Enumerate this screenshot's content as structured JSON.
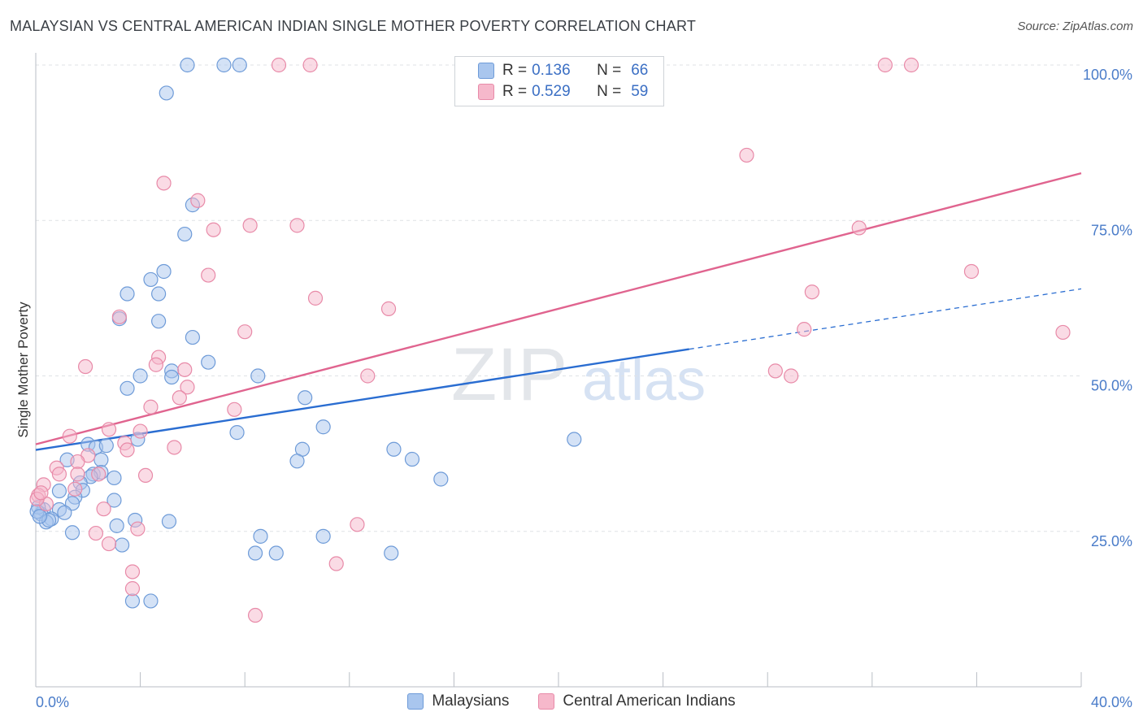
{
  "header": {
    "title": "MALAYSIAN VS CENTRAL AMERICAN INDIAN SINGLE MOTHER POVERTY CORRELATION CHART",
    "source": "Source: ZipAtlas.com"
  },
  "watermark": {
    "zip": "ZIP",
    "atlas": "atlas"
  },
  "legend_top": {
    "rows": [
      {
        "r_label": "R =",
        "r_value": "0.136",
        "n_label": "N =",
        "n_value": "66"
      },
      {
        "r_label": "R =",
        "r_value": "0.529",
        "n_label": "N =",
        "n_value": "59"
      }
    ]
  },
  "legend_bottom": {
    "items": [
      {
        "label": "Malaysians"
      },
      {
        "label": "Central American Indians"
      }
    ]
  },
  "colors": {
    "blue_fill": "#a9c6ee",
    "blue_stroke": "#6e9bd8",
    "blue_line": "#2a6dd1",
    "pink_fill": "#f6b8cb",
    "pink_stroke": "#e88aa8",
    "pink_line": "#e0648f",
    "tick_label": "#4a7cc9"
  },
  "chart_data": {
    "type": "scatter",
    "title": "MALAYSIAN VS CENTRAL AMERICAN INDIAN SINGLE MOTHER POVERTY CORRELATION CHART",
    "xlabel": "",
    "ylabel": "Single Mother Poverty",
    "xlim": [
      0,
      40
    ],
    "ylim": [
      0,
      105
    ],
    "x_tick_labels": [
      "0.0%",
      "40.0%"
    ],
    "y_ticks": [
      25,
      50,
      75,
      100
    ],
    "y_tick_labels": [
      "25.0%",
      "50.0%",
      "75.0%",
      "100.0%"
    ],
    "grid": true,
    "legend_position": "top-center",
    "series": [
      {
        "name": "Malaysians",
        "color": "blue",
        "trend": {
          "x": [
            0,
            25,
            40
          ],
          "y": [
            38.1,
            54.3,
            64.0
          ],
          "solid_to_x": 25
        },
        "points": [
          [
            5.8,
            100
          ],
          [
            7.2,
            100
          ],
          [
            7.8,
            100
          ],
          [
            5.0,
            95.5
          ],
          [
            6.0,
            77.5
          ],
          [
            5.7,
            72.8
          ],
          [
            4.9,
            66.8
          ],
          [
            4.4,
            65.5
          ],
          [
            3.5,
            63.2
          ],
          [
            4.7,
            63.2
          ],
          [
            3.2,
            59.2
          ],
          [
            4.7,
            58.8
          ],
          [
            6.0,
            56.2
          ],
          [
            6.6,
            52.2
          ],
          [
            5.2,
            50.8
          ],
          [
            5.2,
            49.8
          ],
          [
            4.0,
            50.0
          ],
          [
            8.5,
            50.0
          ],
          [
            3.5,
            48.0
          ],
          [
            10.3,
            46.5
          ],
          [
            11.0,
            41.8
          ],
          [
            7.7,
            40.9
          ],
          [
            3.9,
            39.8
          ],
          [
            20.6,
            39.8
          ],
          [
            2.0,
            39.0
          ],
          [
            2.3,
            38.5
          ],
          [
            2.7,
            38.8
          ],
          [
            10.2,
            38.2
          ],
          [
            13.7,
            38.2
          ],
          [
            1.2,
            36.5
          ],
          [
            2.5,
            36.5
          ],
          [
            10.0,
            36.3
          ],
          [
            14.4,
            36.6
          ],
          [
            2.2,
            34.2
          ],
          [
            2.5,
            34.5
          ],
          [
            2.1,
            33.8
          ],
          [
            3.0,
            33.6
          ],
          [
            1.7,
            32.8
          ],
          [
            15.5,
            33.4
          ],
          [
            1.8,
            31.6
          ],
          [
            0.9,
            31.5
          ],
          [
            1.5,
            30.5
          ],
          [
            3.0,
            30.0
          ],
          [
            1.4,
            29.5
          ],
          [
            0.3,
            28.5
          ],
          [
            0.9,
            28.5
          ],
          [
            1.1,
            28.0
          ],
          [
            0.2,
            27.8
          ],
          [
            0.6,
            27.0
          ],
          [
            0.4,
            26.5
          ],
          [
            0.5,
            26.8
          ],
          [
            3.8,
            26.8
          ],
          [
            5.1,
            26.6
          ],
          [
            3.1,
            25.9
          ],
          [
            1.4,
            24.8
          ],
          [
            8.6,
            24.2
          ],
          [
            11.0,
            24.2
          ],
          [
            3.3,
            22.8
          ],
          [
            8.4,
            21.5
          ],
          [
            9.2,
            21.5
          ],
          [
            13.6,
            21.5
          ],
          [
            3.7,
            13.8
          ],
          [
            4.4,
            13.8
          ],
          [
            0.1,
            28.9
          ],
          [
            0.05,
            28.2
          ],
          [
            0.15,
            27.4
          ]
        ]
      },
      {
        "name": "Central American Indians",
        "color": "pink",
        "trend": {
          "x": [
            0,
            40
          ],
          "y": [
            39.0,
            82.6
          ]
        },
        "points": [
          [
            9.3,
            100
          ],
          [
            10.5,
            100
          ],
          [
            32.5,
            100
          ],
          [
            33.5,
            100
          ],
          [
            27.2,
            85.5
          ],
          [
            4.9,
            81.0
          ],
          [
            6.2,
            78.2
          ],
          [
            8.2,
            74.2
          ],
          [
            10.0,
            74.2
          ],
          [
            6.8,
            73.5
          ],
          [
            31.5,
            73.8
          ],
          [
            35.8,
            66.8
          ],
          [
            6.6,
            66.2
          ],
          [
            10.7,
            62.5
          ],
          [
            29.7,
            63.5
          ],
          [
            13.5,
            60.8
          ],
          [
            3.2,
            59.5
          ],
          [
            8.0,
            57.1
          ],
          [
            29.4,
            57.5
          ],
          [
            39.3,
            57.0
          ],
          [
            4.7,
            53.0
          ],
          [
            4.6,
            51.8
          ],
          [
            1.9,
            51.5
          ],
          [
            5.7,
            51.0
          ],
          [
            28.3,
            50.8
          ],
          [
            28.9,
            50.0
          ],
          [
            12.7,
            50.0
          ],
          [
            5.8,
            48.2
          ],
          [
            5.5,
            46.5
          ],
          [
            4.4,
            45.0
          ],
          [
            7.6,
            44.6
          ],
          [
            2.8,
            41.4
          ],
          [
            4.0,
            41.1
          ],
          [
            1.3,
            40.3
          ],
          [
            3.4,
            39.2
          ],
          [
            3.5,
            38.1
          ],
          [
            5.3,
            38.5
          ],
          [
            2.0,
            37.2
          ],
          [
            1.6,
            36.2
          ],
          [
            0.8,
            35.2
          ],
          [
            0.9,
            34.2
          ],
          [
            1.6,
            34.2
          ],
          [
            4.2,
            34.0
          ],
          [
            2.4,
            34.2
          ],
          [
            0.3,
            32.5
          ],
          [
            1.5,
            31.8
          ],
          [
            0.1,
            30.8
          ],
          [
            0.4,
            29.4
          ],
          [
            2.6,
            28.6
          ],
          [
            3.9,
            25.4
          ],
          [
            12.3,
            26.1
          ],
          [
            2.3,
            24.7
          ],
          [
            2.8,
            23.0
          ],
          [
            11.5,
            19.8
          ],
          [
            3.7,
            18.5
          ],
          [
            3.7,
            15.8
          ],
          [
            8.4,
            11.5
          ],
          [
            0.05,
            30.2
          ],
          [
            0.2,
            31.2
          ]
        ]
      }
    ]
  }
}
